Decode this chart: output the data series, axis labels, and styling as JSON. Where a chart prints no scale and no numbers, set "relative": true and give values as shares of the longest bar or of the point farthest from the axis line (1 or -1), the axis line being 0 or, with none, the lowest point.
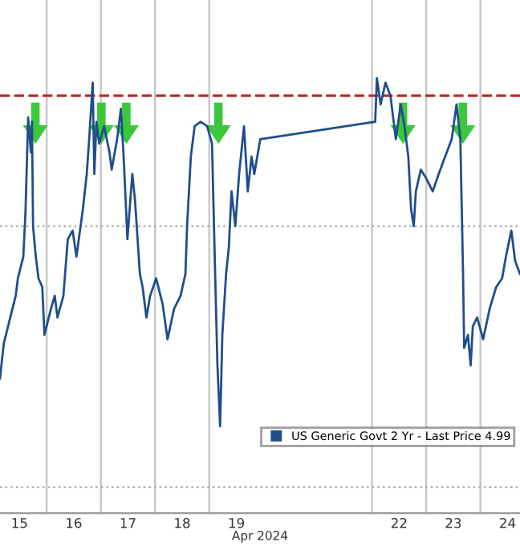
{
  "chart_data": {
    "type": "line",
    "relative": true,
    "xlabel": "Apr 2024",
    "x": [
      "2024-04-15T03:22",
      "2024-04-15T05:02",
      "2024-04-15T07:55",
      "2024-04-15T10:19",
      "2024-04-15T11:17",
      "2024-04-15T13:41",
      "2024-04-15T14:38",
      "2024-04-15T15:50",
      "2024-04-15T17:02",
      "2024-04-15T17:31",
      "2024-04-15T18:00",
      "2024-04-15T19:12",
      "2024-04-15T20:24",
      "2024-04-15T22:05",
      "2024-04-15T23:02",
      "2024-04-16T01:55",
      "2024-04-16T03:36",
      "2024-04-16T04:48",
      "2024-04-16T07:26",
      "2024-04-16T09:22",
      "2024-04-16T11:31",
      "2024-04-16T13:12",
      "2024-04-16T16:05",
      "2024-04-16T17:46",
      "2024-04-16T18:43",
      "2024-04-16T20:24",
      "2024-04-16T21:07",
      "2024-04-16T22:05",
      "2024-04-16T23:17",
      "2024-04-17T01:26",
      "2024-04-17T03:50",
      "2024-04-17T04:48",
      "2024-04-17T07:12",
      "2024-04-17T08:53",
      "2024-04-17T10:05",
      "2024-04-17T11:46",
      "2024-04-17T13:55",
      "2024-04-17T15:07",
      "2024-04-17T17:17",
      "2024-04-17T18:29",
      "2024-04-17T20:10",
      "2024-04-17T21:50",
      "2024-04-18T00:29",
      "2024-04-18T03:22",
      "2024-04-18T05:31",
      "2024-04-18T08:24",
      "2024-04-18T11:17",
      "2024-04-18T13:26",
      "2024-04-18T14:10",
      "2024-04-18T15:50",
      "2024-04-18T17:31",
      "2024-04-18T20:10",
      "2024-04-18T23:02",
      "2024-04-19T01:12",
      "2024-04-19T02:24",
      "2024-04-19T03:36",
      "2024-04-19T04:48",
      "2024-04-19T05:46",
      "2024-04-19T07:26",
      "2024-04-19T08:38",
      "2024-04-19T09:50",
      "2024-04-19T11:31",
      "2024-04-19T13:12",
      "2024-04-19T15:22",
      "2024-04-19T17:02",
      "2024-04-19T18:43",
      "2024-04-19T19:55",
      "2024-04-19T22:34",
      "2024-04-22T01:26",
      "2024-04-22T02:10",
      "2024-04-22T03:50",
      "2024-04-22T06:00",
      "2024-04-22T08:10",
      "2024-04-22T10:34",
      "2024-04-22T12:43",
      "2024-04-22T14:24",
      "2024-04-22T16:05",
      "2024-04-22T17:17",
      "2024-04-22T18:29",
      "2024-04-22T19:26",
      "2024-04-22T21:36",
      "2024-04-23T00:00",
      "2024-04-23T02:53",
      "2024-04-23T05:31",
      "2024-04-23T08:24",
      "2024-04-23T11:17",
      "2024-04-23T13:26",
      "2024-04-23T15:07",
      "2024-04-23T16:19",
      "2024-04-23T16:48",
      "2024-04-23T18:29",
      "2024-04-23T19:41",
      "2024-04-23T20:38",
      "2024-04-23T22:34",
      "2024-04-24T01:12",
      "2024-04-24T04:05",
      "2024-04-24T06:58",
      "2024-04-24T09:36",
      "2024-04-24T11:17",
      "2024-04-24T13:41",
      "2024-04-24T15:22",
      "2024-04-24T17:31"
    ],
    "series": [
      {
        "name": "US Generic Govt 2 Yr - Last Price 4.99",
        "color": "#1f4e8c",
        "values": [
          0.31,
          0.39,
          0.45,
          0.5,
          0.54,
          0.59,
          0.69,
          0.91,
          0.83,
          0.9,
          0.66,
          0.59,
          0.54,
          0.52,
          0.41,
          0.47,
          0.5,
          0.45,
          0.5,
          0.63,
          0.65,
          0.59,
          0.7,
          0.78,
          0.85,
          0.99,
          0.78,
          0.9,
          0.85,
          0.89,
          0.83,
          0.79,
          0.86,
          0.93,
          0.82,
          0.63,
          0.78,
          0.72,
          0.55,
          0.52,
          0.45,
          0.5,
          0.54,
          0.48,
          0.4,
          0.47,
          0.5,
          0.55,
          0.66,
          0.82,
          0.89,
          0.9,
          0.89,
          0.85,
          0.59,
          0.34,
          0.2,
          0.41,
          0.55,
          0.61,
          0.74,
          0.66,
          0.78,
          0.89,
          0.74,
          0.82,
          0.78,
          0.86,
          0.9,
          1,
          0.94,
          0.99,
          0.96,
          0.86,
          0.94,
          0.89,
          0.82,
          0.7,
          0.66,
          0.74,
          0.79,
          0.77,
          0.74,
          0.78,
          0.82,
          0.86,
          0.94,
          0.86,
          0.55,
          0.38,
          0.41,
          0.34,
          0.43,
          0.45,
          0.4,
          0.47,
          0.52,
          0.54,
          0.59,
          0.65,
          0.58,
          0.55
        ]
      }
    ],
    "xlim": [
      "2024-04-15T03:22",
      "2024-04-24T17:31"
    ],
    "xticks": [
      {
        "value": "2024-04-15T12:00",
        "label": "15"
      },
      {
        "value": "2024-04-16T12:00",
        "label": "16"
      },
      {
        "value": "2024-04-17T12:00",
        "label": "17"
      },
      {
        "value": "2024-04-18T12:00",
        "label": "18"
      },
      {
        "value": "2024-04-19T12:00",
        "label": "19"
      },
      {
        "value": "2024-04-22T12:00",
        "label": "22"
      },
      {
        "value": "2024-04-23T12:00",
        "label": "23"
      },
      {
        "value": "2024-04-24T12:00",
        "label": "24"
      }
    ],
    "tick_labels": "x",
    "ref_lines": [
      {
        "axis": "x",
        "value": "2024-04-16",
        "color": "#c8c8c8",
        "line_style": "solid"
      },
      {
        "axis": "x",
        "value": "2024-04-17",
        "color": "#c8c8c8",
        "line_style": "solid"
      },
      {
        "axis": "x",
        "value": "2024-04-18",
        "color": "#c8c8c8",
        "line_style": "solid"
      },
      {
        "axis": "x",
        "value": "2024-04-19",
        "color": "#c8c8c8",
        "line_style": "solid"
      },
      {
        "axis": "x",
        "value": "2024-04-22",
        "color": "#c8c8c8",
        "line_style": "solid"
      },
      {
        "axis": "x",
        "value": "2024-04-23",
        "color": "#c8c8c8",
        "line_style": "solid"
      },
      {
        "axis": "x",
        "value": "2024-04-24",
        "color": "#c8c8c8",
        "line_style": "solid"
      },
      {
        "axis": "y",
        "value": 0.66,
        "color": "#b0b0b0",
        "line_style": "dotted"
      },
      {
        "axis": "y",
        "value": 0.06,
        "color": "#b0b0b0",
        "line_style": "dotted"
      },
      {
        "axis": "y",
        "value": 0.96,
        "color": "#c0282a",
        "line_style": "dashed"
      }
    ],
    "legend": "bottom right",
    "marker": "none",
    "line_style": "solid"
  }
}
